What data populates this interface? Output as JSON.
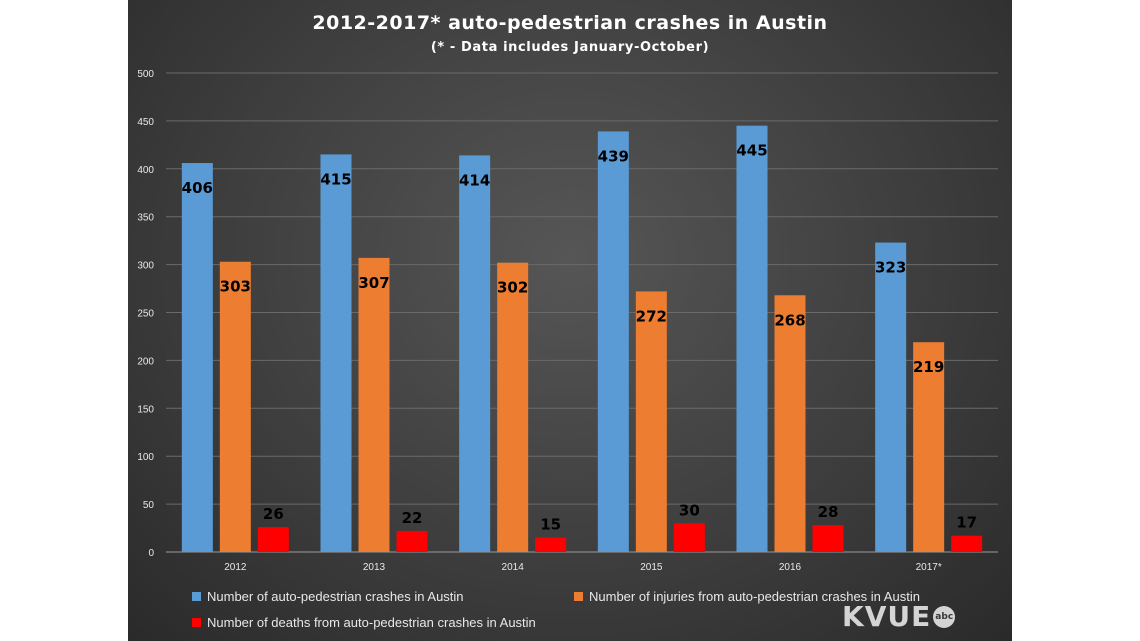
{
  "chart_data": {
    "type": "bar",
    "title": "2012-2017*  auto-pedestrian  crashes  in  Austin",
    "subtitle": "(* - Data includes January-October)",
    "categories": [
      "2012",
      "2013",
      "2014",
      "2015",
      "2016",
      "2017*"
    ],
    "series": [
      {
        "name": "Number of auto-pedestrian crashes in Austin",
        "values": [
          406,
          415,
          414,
          439,
          445,
          323
        ],
        "color": "#5b9bd5"
      },
      {
        "name": "Number of injuries from auto-pedestrian crashes in Austin",
        "values": [
          303,
          307,
          302,
          272,
          268,
          219
        ],
        "color": "#ed7d31"
      },
      {
        "name": "Number of deaths from auto-pedestrian crashes in Austin",
        "values": [
          26,
          22,
          15,
          30,
          28,
          17
        ],
        "color": "#ff0000"
      }
    ],
    "ylim": [
      0,
      500
    ],
    "yticks": [
      0,
      50,
      100,
      150,
      200,
      250,
      300,
      350,
      400,
      450,
      500
    ],
    "grid": true,
    "legend_position": "bottom"
  },
  "logo": {
    "text": "KVUE",
    "badge": "abc"
  }
}
